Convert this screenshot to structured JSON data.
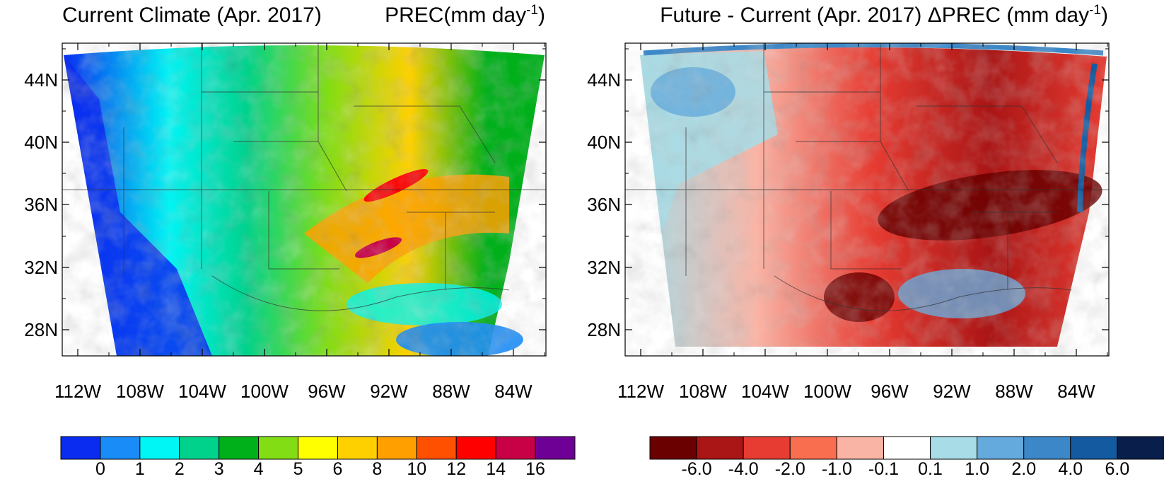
{
  "left_panel": {
    "title_left": "Current Climate (Apr. 2017)",
    "title_right_prefix": "PREC(mm day",
    "title_right_sup": "-1",
    "title_right_suffix": ")",
    "colorbar": {
      "colors": [
        "#0a2cf0",
        "#1a8cf7",
        "#00f5f5",
        "#00d28c",
        "#00b01a",
        "#82dd14",
        "#ffff00",
        "#ffd000",
        "#ffa000",
        "#ff5000",
        "#ff0000",
        "#c80046",
        "#6e0096"
      ],
      "labels": [
        "0",
        "1",
        "2",
        "3",
        "4",
        "5",
        "6",
        "8",
        "10",
        "12",
        "14",
        "16"
      ]
    }
  },
  "right_panel": {
    "title_left": "Future - Current (Apr. 2017) ΔPREC (mm day",
    "title_right_sup": "-1",
    "title_right_suffix": ")",
    "colorbar": {
      "colors": [
        "#6a0000",
        "#aa1515",
        "#e63c32",
        "#fa6e50",
        "#fab4a5",
        "#ffffff",
        "#a8dce6",
        "#64aadc",
        "#3c87c8",
        "#145aa0",
        "#0a1e4b"
      ],
      "labels": [
        "-6.0",
        "-4.0",
        "-2.0",
        "-1.0",
        "-0.1",
        "0.1",
        "1.0",
        "2.0",
        "4.0",
        "6.0"
      ]
    }
  },
  "axes": {
    "lat_labels": [
      "44N",
      "40N",
      "36N",
      "32N",
      "28N"
    ],
    "lon_labels": [
      "112W",
      "108W",
      "104W",
      "100W",
      "96W",
      "92W",
      "88W",
      "84W"
    ]
  }
}
